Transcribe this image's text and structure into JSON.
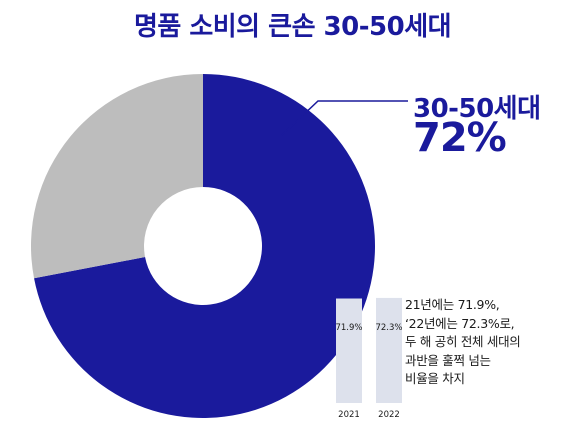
{
  "title": "명품 소비의 큰손 30-50세대",
  "callout": {
    "label": "30-50세대",
    "value": "72%"
  },
  "note_lines": [
    "21년에는 71.9%,",
    "‘22년에는 72.3%로,",
    "두 해 공히 전체 세대의",
    "과반을 훌쩍 넘는",
    "비율을 차지"
  ],
  "colors": {
    "primary": "#1a1a9c",
    "other": "#bdbdbd",
    "bar": "#dde1ec",
    "text": "#1a1a1a"
  },
  "chart_data": [
    {
      "type": "pie",
      "variant": "donut",
      "slices": [
        {
          "label": "30-50세대",
          "value": 72
        },
        {
          "label": "",
          "value": 28
        }
      ]
    },
    {
      "type": "bar",
      "categories": [
        "2021",
        "2022"
      ],
      "values": [
        71.9,
        72.3
      ],
      "value_labels": [
        "71.9%",
        "72.3%"
      ],
      "ylim": [
        0,
        100
      ]
    }
  ]
}
